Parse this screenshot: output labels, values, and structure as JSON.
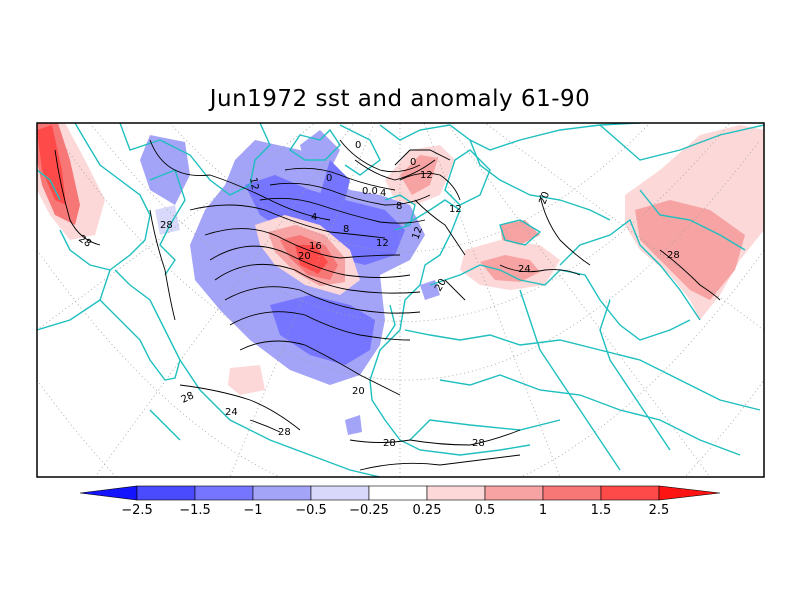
{
  "title": "Jun1972 sst and anomaly 61-90",
  "map": {
    "projection": "polar-stereographic",
    "contour_labels": [
      "0",
      "0",
      "0.0",
      "4",
      "0",
      "8",
      "12",
      "20",
      "12",
      "8",
      "4",
      "12",
      "16",
      "20",
      "12",
      "12",
      "28",
      "28",
      "20",
      "24",
      "20",
      "28",
      "24",
      "28",
      "28",
      "28",
      "28"
    ]
  },
  "colorbar": {
    "labels": [
      "−2.5",
      "−1.5",
      "−1",
      "−0.5",
      "−0.25",
      "0.25",
      "0.5",
      "1",
      "1.5",
      "2.5"
    ],
    "colors": [
      "#1414ff",
      "#4a4aff",
      "#7575ff",
      "#a3a3f7",
      "#d8d8fb",
      "#ffffff",
      "#fcd8d8",
      "#f7a3a3",
      "#f77777",
      "#ff4a4a",
      "#ff1414"
    ]
  },
  "colors": {
    "coastline": "#1fbfbf",
    "grid": "#a0a0a0",
    "contour": "#000000"
  }
}
